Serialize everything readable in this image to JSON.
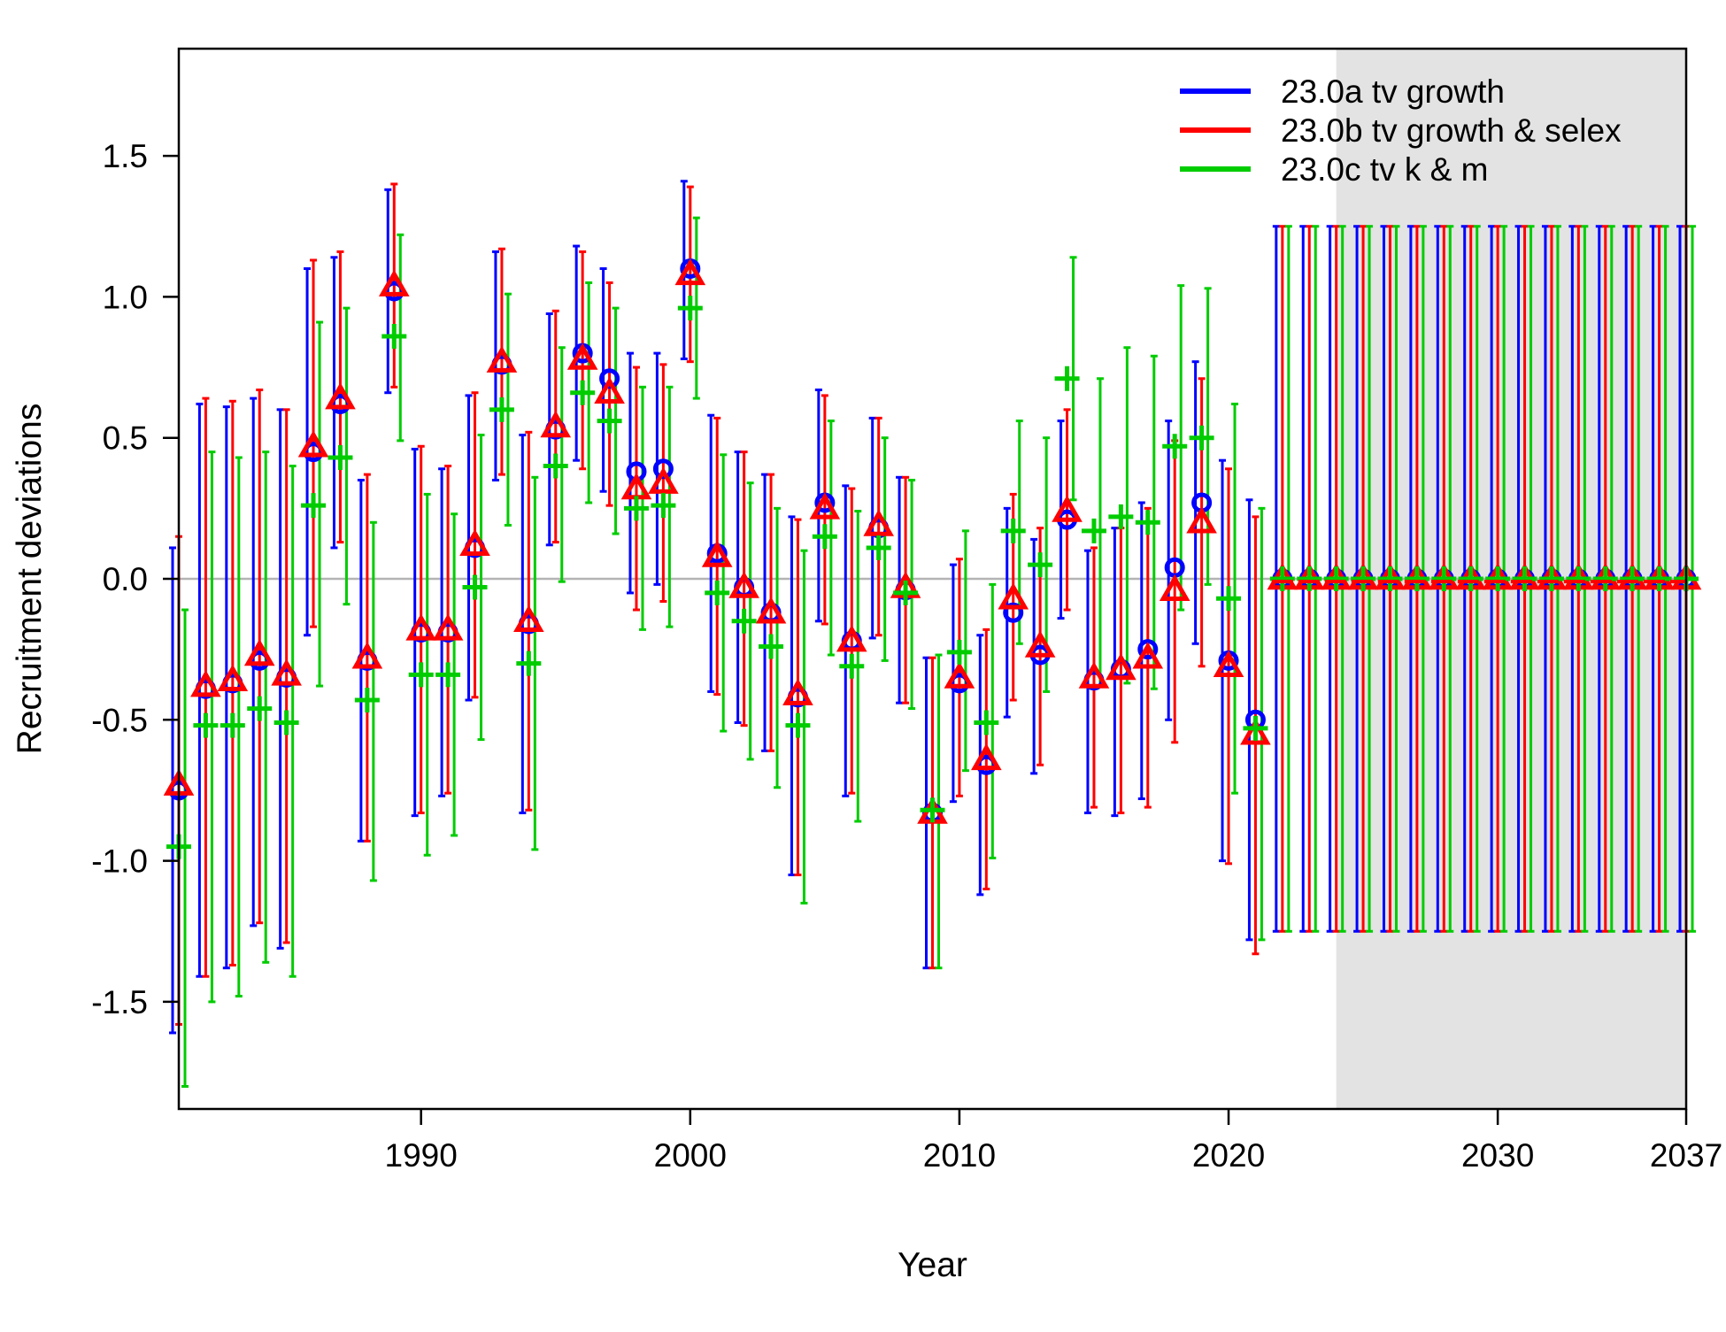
{
  "chart_data": {
    "type": "scatter",
    "subtype": "points with vertical interval bars",
    "xlabel": "Year",
    "ylabel": "Recruitment deviations",
    "xlim": [
      1981,
      2037
    ],
    "ylim": [
      -1.88,
      1.88
    ],
    "x_ticks": [
      1990,
      2000,
      2010,
      2020,
      2030,
      2037
    ],
    "y_ticks": [
      -1.5,
      -1.0,
      -0.5,
      0.0,
      0.5,
      1.0,
      1.5
    ],
    "y_tick_labels": [
      "-1.5",
      "-1.0",
      "-0.5",
      "0.0",
      "0.5",
      "1.0",
      "1.5"
    ],
    "reference_line_y": 0,
    "forecast_shade_start": 2024,
    "grid": false,
    "legend_position": "top-right",
    "x": [
      1981,
      1982,
      1983,
      1984,
      1985,
      1986,
      1987,
      1988,
      1989,
      1990,
      1991,
      1992,
      1993,
      1994,
      1995,
      1996,
      1997,
      1998,
      1999,
      2000,
      2001,
      2002,
      2003,
      2004,
      2005,
      2006,
      2007,
      2008,
      2009,
      2010,
      2011,
      2012,
      2013,
      2014,
      2015,
      2016,
      2017,
      2018,
      2019,
      2020,
      2021,
      2022,
      2023,
      2024,
      2025,
      2026,
      2027,
      2028,
      2029,
      2030,
      2031,
      2032,
      2033,
      2034,
      2035,
      2036,
      2037
    ],
    "series": [
      {
        "name": "23.0a tv growth",
        "color": "#0000ff",
        "marker": "circle",
        "values": [
          -0.75,
          -0.39,
          -0.37,
          -0.29,
          -0.35,
          0.45,
          0.62,
          -0.29,
          1.02,
          -0.19,
          -0.19,
          0.11,
          0.76,
          -0.16,
          0.53,
          0.8,
          0.71,
          0.38,
          0.39,
          1.1,
          0.09,
          -0.03,
          -0.12,
          -0.42,
          0.27,
          -0.22,
          0.18,
          -0.04,
          -0.83,
          -0.37,
          -0.66,
          -0.12,
          -0.27,
          0.21,
          -0.36,
          -0.32,
          -0.25,
          0.04,
          0.27,
          -0.29,
          -0.5,
          0,
          0,
          0,
          0,
          0,
          0,
          0,
          0,
          0,
          0,
          0,
          0,
          0,
          0,
          0,
          0
        ],
        "lower": [
          -1.61,
          -1.41,
          -1.38,
          -1.23,
          -1.31,
          -0.2,
          0.11,
          -0.93,
          0.66,
          -0.84,
          -0.77,
          -0.43,
          0.35,
          -0.83,
          0.12,
          0.42,
          0.31,
          -0.05,
          -0.02,
          0.78,
          -0.4,
          -0.51,
          -0.61,
          -1.05,
          -0.15,
          -0.77,
          -0.21,
          -0.44,
          -1.38,
          -0.79,
          -1.12,
          -0.49,
          -0.69,
          -0.14,
          -0.83,
          -0.84,
          -0.78,
          -0.5,
          -0.23,
          -1.0,
          -1.28,
          -1.25,
          -1.25,
          -1.25,
          -1.25,
          -1.25,
          -1.25,
          -1.25,
          -1.25,
          -1.25,
          -1.25,
          -1.25,
          -1.25,
          -1.25,
          -1.25,
          -1.25,
          -1.25
        ],
        "upper": [
          0.11,
          0.62,
          0.61,
          0.64,
          0.6,
          1.1,
          1.14,
          0.35,
          1.38,
          0.46,
          0.39,
          0.65,
          1.16,
          0.51,
          0.94,
          1.18,
          1.1,
          0.8,
          0.8,
          1.41,
          0.58,
          0.45,
          0.37,
          0.22,
          0.67,
          0.33,
          0.57,
          0.36,
          -0.28,
          0.05,
          -0.2,
          0.25,
          0.14,
          0.56,
          0.1,
          0.18,
          0.27,
          0.56,
          0.77,
          0.42,
          0.28,
          1.25,
          1.25,
          1.25,
          1.25,
          1.25,
          1.25,
          1.25,
          1.25,
          1.25,
          1.25,
          1.25,
          1.25,
          1.25,
          1.25,
          1.25,
          1.25
        ]
      },
      {
        "name": "23.0b tv growth & selex",
        "color": "#ff0000",
        "marker": "triangle",
        "values": [
          -0.73,
          -0.38,
          -0.36,
          -0.27,
          -0.34,
          0.47,
          0.64,
          -0.28,
          1.04,
          -0.18,
          -0.18,
          0.12,
          0.77,
          -0.15,
          0.54,
          0.78,
          0.66,
          0.32,
          0.34,
          1.08,
          0.08,
          -0.03,
          -0.12,
          -0.41,
          0.25,
          -0.22,
          0.19,
          -0.03,
          -0.83,
          -0.35,
          -0.64,
          -0.07,
          -0.24,
          0.24,
          -0.35,
          -0.32,
          -0.28,
          -0.04,
          0.2,
          -0.31,
          -0.55,
          0,
          0,
          0,
          0,
          0,
          0,
          0,
          0,
          0,
          0,
          0,
          0,
          0,
          0,
          0,
          0
        ],
        "lower": [
          -1.58,
          -1.41,
          -1.37,
          -1.22,
          -1.29,
          -0.17,
          0.13,
          -0.93,
          0.68,
          -0.83,
          -0.76,
          -0.42,
          0.37,
          -0.82,
          0.13,
          0.39,
          0.26,
          -0.11,
          -0.08,
          0.77,
          -0.41,
          -0.52,
          -0.61,
          -1.05,
          -0.16,
          -0.76,
          -0.2,
          -0.44,
          -1.38,
          -0.77,
          -1.1,
          -0.43,
          -0.66,
          -0.11,
          -0.81,
          -0.83,
          -0.81,
          -0.58,
          -0.31,
          -1.01,
          -1.33,
          -1.25,
          -1.25,
          -1.25,
          -1.25,
          -1.25,
          -1.25,
          -1.25,
          -1.25,
          -1.25,
          -1.25,
          -1.25,
          -1.25,
          -1.25,
          -1.25,
          -1.25,
          -1.25
        ],
        "upper": [
          0.15,
          0.64,
          0.63,
          0.67,
          0.6,
          1.13,
          1.16,
          0.37,
          1.4,
          0.47,
          0.4,
          0.66,
          1.17,
          0.52,
          0.95,
          1.16,
          1.05,
          0.75,
          0.76,
          1.39,
          0.57,
          0.45,
          0.37,
          0.21,
          0.65,
          0.32,
          0.57,
          0.36,
          -0.28,
          0.07,
          -0.18,
          0.3,
          0.18,
          0.6,
          0.11,
          0.18,
          0.25,
          0.49,
          0.71,
          0.39,
          0.22,
          1.25,
          1.25,
          1.25,
          1.25,
          1.25,
          1.25,
          1.25,
          1.25,
          1.25,
          1.25,
          1.25,
          1.25,
          1.25,
          1.25,
          1.25,
          1.25
        ]
      },
      {
        "name": "23.0c tv k & m",
        "color": "#00cc00",
        "marker": "plus",
        "values": [
          -0.95,
          -0.52,
          -0.52,
          -0.46,
          -0.51,
          0.26,
          0.43,
          -0.43,
          0.86,
          -0.34,
          -0.34,
          -0.03,
          0.6,
          -0.3,
          0.4,
          0.66,
          0.56,
          0.25,
          0.26,
          0.96,
          -0.05,
          -0.15,
          -0.24,
          -0.52,
          0.15,
          -0.31,
          0.11,
          -0.05,
          -0.82,
          -0.26,
          -0.51,
          0.17,
          0.05,
          0.71,
          0.17,
          0.22,
          0.2,
          0.47,
          0.5,
          -0.07,
          -0.53,
          0,
          0,
          0,
          0,
          0,
          0,
          0,
          0,
          0,
          0,
          0,
          0,
          0,
          0,
          0,
          0
        ],
        "lower": [
          -1.8,
          -1.5,
          -1.48,
          -1.36,
          -1.41,
          -0.38,
          -0.09,
          -1.07,
          0.49,
          -0.98,
          -0.91,
          -0.57,
          0.19,
          -0.96,
          -0.01,
          0.27,
          0.16,
          -0.18,
          -0.17,
          0.64,
          -0.54,
          -0.64,
          -0.74,
          -1.15,
          -0.27,
          -0.86,
          -0.29,
          -0.46,
          -1.38,
          -0.68,
          -0.99,
          -0.23,
          -0.4,
          0.28,
          -0.38,
          -0.37,
          -0.39,
          -0.11,
          -0.02,
          -0.76,
          -1.28,
          -1.25,
          -1.25,
          -1.25,
          -1.25,
          -1.25,
          -1.25,
          -1.25,
          -1.25,
          -1.25,
          -1.25,
          -1.25,
          -1.25,
          -1.25,
          -1.25,
          -1.25,
          -1.25
        ],
        "upper": [
          -0.11,
          0.45,
          0.43,
          0.45,
          0.4,
          0.91,
          0.96,
          0.2,
          1.22,
          0.3,
          0.23,
          0.51,
          1.01,
          0.36,
          0.82,
          1.05,
          0.96,
          0.68,
          0.68,
          1.28,
          0.44,
          0.34,
          0.25,
          0.1,
          0.56,
          0.24,
          0.5,
          0.35,
          -0.27,
          0.17,
          -0.02,
          0.56,
          0.5,
          1.14,
          0.71,
          0.82,
          0.79,
          1.04,
          1.03,
          0.62,
          0.25,
          1.25,
          1.25,
          1.25,
          1.25,
          1.25,
          1.25,
          1.25,
          1.25,
          1.25,
          1.25,
          1.25,
          1.25,
          1.25,
          1.25,
          1.25,
          1.25
        ]
      }
    ]
  }
}
